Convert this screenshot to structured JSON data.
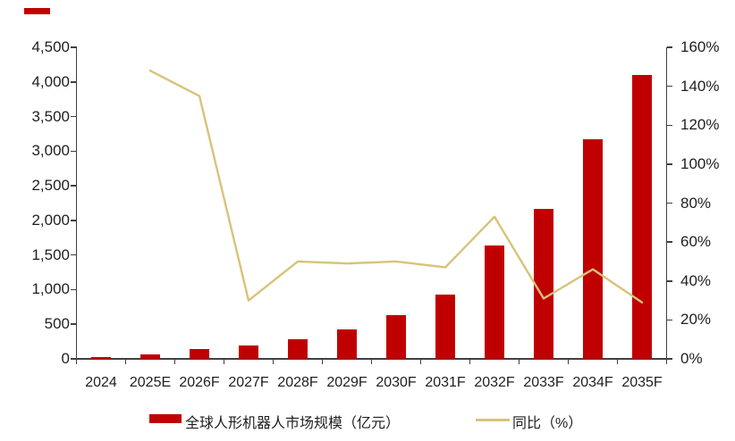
{
  "page": {
    "background": "#ffffff",
    "text_color": "#1f1f1f",
    "axis_color": "#404040"
  },
  "decor": {
    "corner_dash_color": "#c00000"
  },
  "legend": {
    "items": [
      {
        "label": "全球人形机器人市场规模（亿元）",
        "swatch": "bar",
        "color": "#c00000"
      },
      {
        "label": "同比（%）",
        "swatch": "line",
        "color": "#d9c27a"
      }
    ]
  },
  "chart_data": {
    "type": "bar",
    "subtype": "combo bar+line, dual axis",
    "categories": [
      "2024",
      "2025E",
      "2026F",
      "2027F",
      "2028F",
      "2029F",
      "2030F",
      "2031F",
      "2032F",
      "2033F",
      "2034F",
      "2035F"
    ],
    "series": [
      {
        "name": "全球人形机器人市场规模（亿元）",
        "type": "bar",
        "axis": "left",
        "color": "#c00000",
        "values": [
          25,
          60,
          145,
          190,
          280,
          420,
          630,
          930,
          1640,
          2160,
          3170,
          4100
        ]
      },
      {
        "name": "同比（%）",
        "type": "line",
        "axis": "right",
        "color": "#d9c27a",
        "values": [
          null,
          148,
          135,
          30,
          50,
          49,
          50,
          47,
          73,
          31,
          46,
          29
        ]
      }
    ],
    "left_axis": {
      "min": 0,
      "max": 4500,
      "step": 500,
      "tick_labels": [
        "0",
        "500",
        "1,000",
        "1,500",
        "2,000",
        "2,500",
        "3,000",
        "3,500",
        "4,000",
        "4,500"
      ]
    },
    "right_axis": {
      "min": 0,
      "max": 160,
      "step": 20,
      "tick_labels": [
        "0%",
        "20%",
        "40%",
        "60%",
        "80%",
        "100%",
        "120%",
        "140%",
        "160%"
      ]
    },
    "grid": false,
    "legend_position": "bottom"
  }
}
